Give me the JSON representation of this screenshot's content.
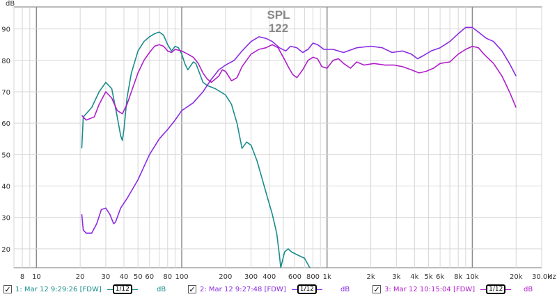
{
  "chart_data": {
    "type": "line",
    "overlay_title": "SPL",
    "overlay_value": "122",
    "ylabel": "dB",
    "xunit": "Hz",
    "xscale": "log",
    "xlim": [
      7,
      30000
    ],
    "ylim": [
      14,
      97
    ],
    "grid": true,
    "x_ticks": [
      {
        "v": 8,
        "label": "8"
      },
      {
        "v": 10,
        "label": "10"
      },
      {
        "v": 20,
        "label": "20"
      },
      {
        "v": 30,
        "label": "30"
      },
      {
        "v": 40,
        "label": "40"
      },
      {
        "v": 50,
        "label": "50"
      },
      {
        "v": 60,
        "label": "60"
      },
      {
        "v": 80,
        "label": "80"
      },
      {
        "v": 100,
        "label": "100"
      },
      {
        "v": 200,
        "label": "200"
      },
      {
        "v": 300,
        "label": "300"
      },
      {
        "v": 400,
        "label": "400"
      },
      {
        "v": 600,
        "label": "600"
      },
      {
        "v": 800,
        "label": "800"
      },
      {
        "v": 1000,
        "label": "1k"
      },
      {
        "v": 2000,
        "label": "2k"
      },
      {
        "v": 3000,
        "label": "3k"
      },
      {
        "v": 4000,
        "label": "4k"
      },
      {
        "v": 5000,
        "label": "5k"
      },
      {
        "v": 6000,
        "label": "6k"
      },
      {
        "v": 8000,
        "label": "8k"
      },
      {
        "v": 10000,
        "label": "10k"
      },
      {
        "v": 20000,
        "label": "20k"
      },
      {
        "v": 30000,
        "label": "30.0k"
      }
    ],
    "y_ticks": [
      90,
      80,
      70,
      60,
      50,
      40,
      30,
      20
    ],
    "series": [
      {
        "name": "1: Mar 12 9:29:26 [FDW]",
        "color": "#1a8c8c",
        "points": [
          [
            20.5,
            52
          ],
          [
            21,
            62
          ],
          [
            22,
            63
          ],
          [
            24,
            65
          ],
          [
            27,
            70
          ],
          [
            30,
            73
          ],
          [
            33,
            71
          ],
          [
            36,
            62
          ],
          [
            38,
            56
          ],
          [
            39,
            54.5
          ],
          [
            40,
            58
          ],
          [
            42,
            68
          ],
          [
            45,
            76
          ],
          [
            50,
            83
          ],
          [
            55,
            86
          ],
          [
            60,
            87.5
          ],
          [
            65,
            88.5
          ],
          [
            70,
            89
          ],
          [
            75,
            88
          ],
          [
            80,
            85
          ],
          [
            85,
            83
          ],
          [
            90,
            84.5
          ],
          [
            95,
            84
          ],
          [
            100,
            82
          ],
          [
            105,
            79
          ],
          [
            110,
            77
          ],
          [
            120,
            79.5
          ],
          [
            125,
            79
          ],
          [
            130,
            77
          ],
          [
            140,
            73
          ],
          [
            150,
            72
          ],
          [
            170,
            71
          ],
          [
            200,
            69
          ],
          [
            220,
            66
          ],
          [
            240,
            60
          ],
          [
            260,
            52
          ],
          [
            280,
            54
          ],
          [
            300,
            53
          ],
          [
            330,
            48
          ],
          [
            380,
            38
          ],
          [
            420,
            31
          ],
          [
            450,
            25
          ],
          [
            470,
            18
          ],
          [
            480,
            14
          ],
          [
            510,
            19
          ],
          [
            540,
            20
          ],
          [
            570,
            19
          ],
          [
            630,
            18
          ],
          [
            700,
            17
          ],
          [
            760,
            14
          ]
        ]
      },
      {
        "name": "2: Mar 12 9:27:48 [FDW]",
        "color": "#8a2be2",
        "points": [
          [
            20.5,
            31
          ],
          [
            21,
            26
          ],
          [
            22,
            25
          ],
          [
            24,
            25
          ],
          [
            26,
            28
          ],
          [
            28,
            32.5
          ],
          [
            30,
            33
          ],
          [
            32,
            31
          ],
          [
            34,
            28
          ],
          [
            35,
            28.5
          ],
          [
            38,
            33
          ],
          [
            42,
            36
          ],
          [
            50,
            42
          ],
          [
            60,
            50
          ],
          [
            70,
            55
          ],
          [
            80,
            58
          ],
          [
            90,
            61
          ],
          [
            100,
            64
          ],
          [
            120,
            66.5
          ],
          [
            140,
            70
          ],
          [
            160,
            74
          ],
          [
            180,
            77
          ],
          [
            200,
            78.5
          ],
          [
            230,
            80
          ],
          [
            260,
            83
          ],
          [
            300,
            86
          ],
          [
            340,
            87.5
          ],
          [
            380,
            87
          ],
          [
            420,
            86
          ],
          [
            470,
            84
          ],
          [
            520,
            83
          ],
          [
            560,
            84.5
          ],
          [
            620,
            84
          ],
          [
            680,
            82.5
          ],
          [
            740,
            83.5
          ],
          [
            800,
            85.5
          ],
          [
            860,
            85
          ],
          [
            950,
            83.5
          ],
          [
            1100,
            83.5
          ],
          [
            1300,
            82.5
          ],
          [
            1600,
            84
          ],
          [
            2000,
            84.5
          ],
          [
            2400,
            84
          ],
          [
            2800,
            82.5
          ],
          [
            3300,
            83
          ],
          [
            3800,
            82
          ],
          [
            4200,
            80.5
          ],
          [
            4600,
            81.5
          ],
          [
            5200,
            83
          ],
          [
            6000,
            84
          ],
          [
            7000,
            86
          ],
          [
            8000,
            88.5
          ],
          [
            9000,
            90.5
          ],
          [
            10000,
            90.5
          ],
          [
            11000,
            89
          ],
          [
            12500,
            87
          ],
          [
            14000,
            86
          ],
          [
            16000,
            83
          ],
          [
            18000,
            79
          ],
          [
            20000,
            75
          ]
        ]
      },
      {
        "name": "3: Mar 12 10:15:04 [FDW]",
        "color": "#b01ec9",
        "points": [
          [
            20.5,
            62.5
          ],
          [
            22,
            61
          ],
          [
            25,
            62
          ],
          [
            27,
            66
          ],
          [
            30,
            70
          ],
          [
            33,
            68
          ],
          [
            36,
            64
          ],
          [
            39,
            63
          ],
          [
            42,
            66
          ],
          [
            45,
            70
          ],
          [
            50,
            76
          ],
          [
            55,
            80
          ],
          [
            60,
            82.5
          ],
          [
            65,
            84.5
          ],
          [
            70,
            85
          ],
          [
            75,
            84.5
          ],
          [
            80,
            83
          ],
          [
            85,
            82.5
          ],
          [
            90,
            83.5
          ],
          [
            100,
            83
          ],
          [
            110,
            82
          ],
          [
            120,
            81
          ],
          [
            130,
            79
          ],
          [
            140,
            76
          ],
          [
            150,
            74
          ],
          [
            160,
            73
          ],
          [
            180,
            75
          ],
          [
            190,
            77
          ],
          [
            200,
            76.5
          ],
          [
            220,
            73.5
          ],
          [
            240,
            74.5
          ],
          [
            260,
            78
          ],
          [
            300,
            82
          ],
          [
            340,
            83.5
          ],
          [
            380,
            84
          ],
          [
            420,
            85
          ],
          [
            460,
            84
          ],
          [
            500,
            81
          ],
          [
            540,
            78
          ],
          [
            580,
            75.5
          ],
          [
            620,
            74.5
          ],
          [
            680,
            77
          ],
          [
            740,
            80
          ],
          [
            800,
            81
          ],
          [
            860,
            80.5
          ],
          [
            920,
            78
          ],
          [
            1000,
            77.5
          ],
          [
            1100,
            80
          ],
          [
            1200,
            80.5
          ],
          [
            1300,
            79
          ],
          [
            1450,
            77.5
          ],
          [
            1600,
            79.5
          ],
          [
            1800,
            78.5
          ],
          [
            2100,
            79
          ],
          [
            2500,
            78.5
          ],
          [
            2900,
            78.5
          ],
          [
            3300,
            78
          ],
          [
            3800,
            77
          ],
          [
            4300,
            76
          ],
          [
            4800,
            76.5
          ],
          [
            5400,
            77.5
          ],
          [
            6000,
            79
          ],
          [
            7000,
            79.5
          ],
          [
            8000,
            82
          ],
          [
            9000,
            83.5
          ],
          [
            10000,
            84.5
          ],
          [
            11000,
            84
          ],
          [
            12000,
            82
          ],
          [
            14000,
            79
          ],
          [
            16000,
            75
          ],
          [
            18000,
            70
          ],
          [
            20000,
            65
          ]
        ]
      }
    ]
  },
  "legend": [
    {
      "checked": true,
      "mark": "✓",
      "label": "1: Mar 12 9:29:26 [FDW]",
      "smoothing": "1/12",
      "unit": "dB",
      "color": "#1a8c8c"
    },
    {
      "checked": true,
      "mark": "✓",
      "label": "2: Mar 12 9:27:48 [FDW]",
      "smoothing": "1/12",
      "unit": "dB",
      "color": "#8a2be2"
    },
    {
      "checked": true,
      "mark": "✓",
      "label": "3: Mar 12 10:15:04 [FDW]",
      "smoothing": "1/12",
      "unit": "dB",
      "color": "#b01ec9"
    }
  ]
}
